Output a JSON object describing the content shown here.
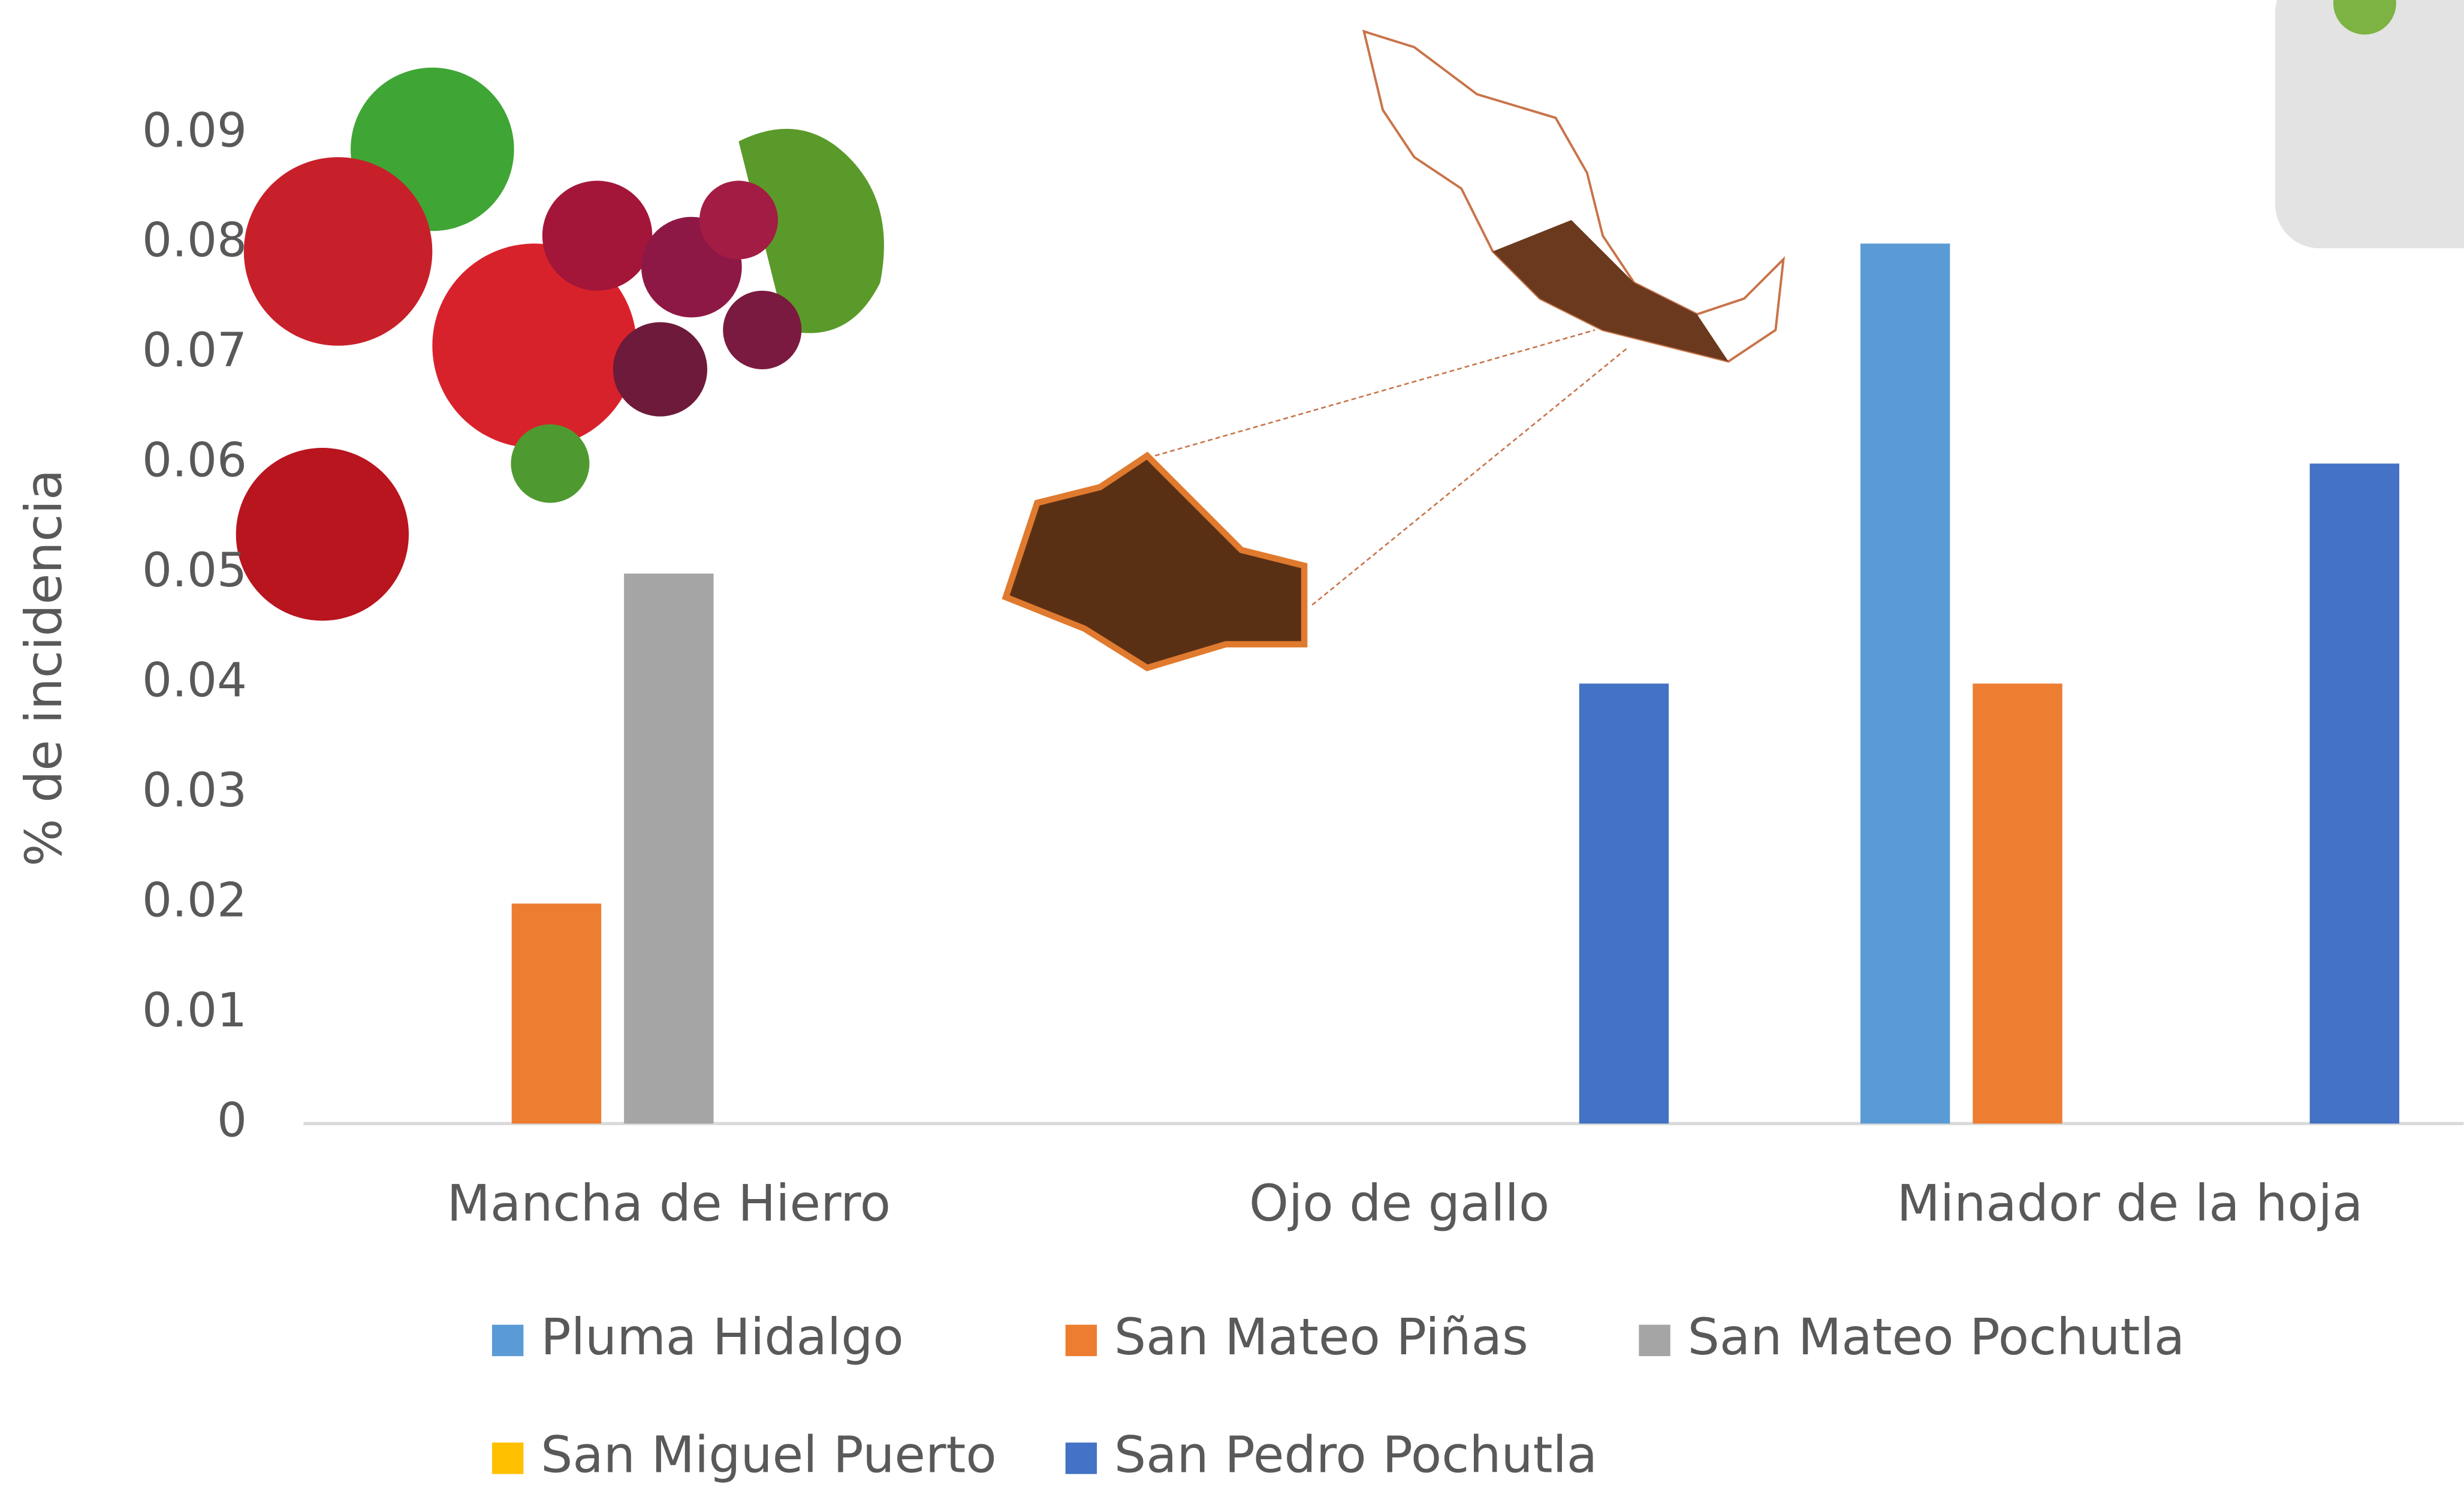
{
  "chart_data": {
    "type": "bar",
    "y_label": "% de incidencia",
    "categories": [
      "Mancha de Hierro",
      "Ojo de gallo",
      "Minador de la hoja"
    ],
    "series": [
      {
        "name": "Pluma Hidalgo",
        "color": "#5b9bd5",
        "values": [
          0,
          0,
          0.08
        ]
      },
      {
        "name": "San Mateo Piñas",
        "color": "#ed7d31",
        "values": [
          0.02,
          0,
          0.04
        ]
      },
      {
        "name": "San Mateo Pochutla",
        "color": "#a5a5a5",
        "values": [
          0.05,
          0,
          0
        ]
      },
      {
        "name": "San Miguel Puerto",
        "color": "#ffc000",
        "values": [
          0,
          0,
          0
        ]
      },
      {
        "name": "San Pedro Pochutla",
        "color": "#4472c4",
        "values": [
          0,
          0.04,
          0.06
        ]
      }
    ],
    "ylim": [
      0,
      0.09
    ],
    "yticks": [
      0,
      0.01,
      0.02,
      0.03,
      0.04,
      0.05,
      0.06,
      0.07,
      0.08,
      0.09
    ],
    "legend": "bottom"
  }
}
